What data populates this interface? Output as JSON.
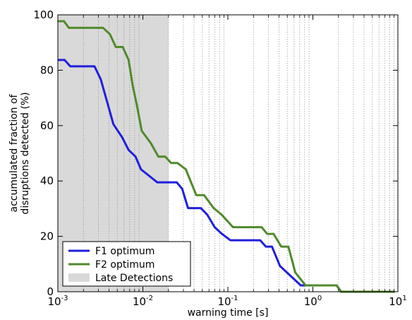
{
  "chart_data": {
    "type": "line",
    "title": "",
    "xlabel": "warning time [s]",
    "ylabel_lines": [
      "accumulated fraction of",
      "disruptions detected (%)"
    ],
    "xscale": "log",
    "xlim": [
      0.001,
      10
    ],
    "ylim": [
      0,
      100
    ],
    "xticks": [
      {
        "value": 0.001,
        "base": "10",
        "exp": "-3"
      },
      {
        "value": 0.01,
        "base": "10",
        "exp": "-2"
      },
      {
        "value": 0.1,
        "base": "10",
        "exp": "-1"
      },
      {
        "value": 1,
        "base": "10",
        "exp": "0"
      },
      {
        "value": 10,
        "base": "10",
        "exp": "1"
      }
    ],
    "yticks": [
      {
        "value": 0,
        "label": "0"
      },
      {
        "value": 20,
        "label": "20"
      },
      {
        "value": 40,
        "label": "40"
      },
      {
        "value": 60,
        "label": "60"
      },
      {
        "value": 80,
        "label": "80"
      },
      {
        "value": 100,
        "label": "100"
      }
    ],
    "grid": "x-minor-dotted",
    "shaded_region": {
      "x": [
        0.001,
        0.02
      ],
      "label": "Late Detections",
      "color": "#d9d9d9"
    },
    "legend_position": "lower-left",
    "series": [
      {
        "name": "F1 optimum",
        "color": "#1f1fdc",
        "points": [
          [
            0.001,
            83.7
          ],
          [
            0.0012,
            83.7
          ],
          [
            0.0014,
            81.4
          ],
          [
            0.0027,
            81.4
          ],
          [
            0.0032,
            76.7
          ],
          [
            0.0037,
            69.8
          ],
          [
            0.0045,
            60.5
          ],
          [
            0.0057,
            55.8
          ],
          [
            0.0068,
            51.2
          ],
          [
            0.0082,
            48.8
          ],
          [
            0.0095,
            44.2
          ],
          [
            0.0118,
            41.9
          ],
          [
            0.0148,
            39.5
          ],
          [
            0.025,
            39.5
          ],
          [
            0.029,
            37.2
          ],
          [
            0.034,
            30.2
          ],
          [
            0.048,
            30.2
          ],
          [
            0.057,
            27.9
          ],
          [
            0.07,
            23.3
          ],
          [
            0.085,
            20.9
          ],
          [
            0.107,
            18.6
          ],
          [
            0.24,
            18.6
          ],
          [
            0.28,
            16.3
          ],
          [
            0.33,
            16.3
          ],
          [
            0.41,
            9.3
          ],
          [
            0.72,
            2.3
          ],
          [
            1.9,
            2.3
          ],
          [
            2.15,
            0
          ],
          [
            9.2,
            0
          ]
        ]
      },
      {
        "name": "F2 optimum",
        "color": "#4f8a2b",
        "points": [
          [
            0.001,
            97.7
          ],
          [
            0.00118,
            97.7
          ],
          [
            0.00135,
            95.3
          ],
          [
            0.0034,
            95.3
          ],
          [
            0.0041,
            93.0
          ],
          [
            0.0048,
            88.4
          ],
          [
            0.0058,
            88.4
          ],
          [
            0.0068,
            83.7
          ],
          [
            0.0076,
            74.4
          ],
          [
            0.0085,
            67.4
          ],
          [
            0.0097,
            58.1
          ],
          [
            0.0125,
            53.5
          ],
          [
            0.0152,
            48.8
          ],
          [
            0.0183,
            48.8
          ],
          [
            0.0215,
            46.5
          ],
          [
            0.0255,
            46.5
          ],
          [
            0.032,
            44.2
          ],
          [
            0.0425,
            34.9
          ],
          [
            0.0525,
            34.9
          ],
          [
            0.068,
            30.2
          ],
          [
            0.084,
            27.9
          ],
          [
            0.115,
            23.3
          ],
          [
            0.25,
            23.3
          ],
          [
            0.29,
            20.9
          ],
          [
            0.345,
            20.9
          ],
          [
            0.425,
            16.3
          ],
          [
            0.515,
            16.3
          ],
          [
            0.62,
            7.0
          ],
          [
            0.82,
            2.3
          ],
          [
            1.9,
            2.3
          ],
          [
            2.15,
            0
          ],
          [
            9.2,
            0
          ]
        ]
      }
    ]
  }
}
